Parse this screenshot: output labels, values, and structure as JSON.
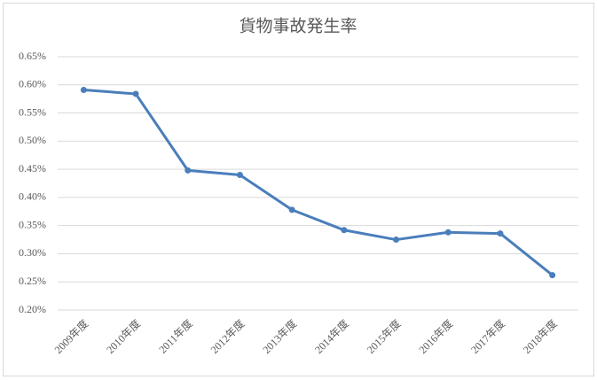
{
  "chart_data": {
    "type": "line",
    "title": "貨物事故発生率",
    "categories": [
      "2009年度",
      "2010年度",
      "2011年度",
      "2012年度",
      "2013年度",
      "2014年度",
      "2015年度",
      "2016年度",
      "2017年度",
      "2018年度"
    ],
    "values": [
      0.591,
      0.584,
      0.448,
      0.44,
      0.378,
      0.342,
      0.325,
      0.338,
      0.336,
      0.262
    ],
    "color": "#4a7ebb",
    "ylim": [
      0.2,
      0.65
    ],
    "yticks": [
      {
        "value": 0.2,
        "label": "0.20%"
      },
      {
        "value": 0.25,
        "label": "0.25%"
      },
      {
        "value": 0.3,
        "label": "0.30%"
      },
      {
        "value": 0.35,
        "label": "0.35%"
      },
      {
        "value": 0.4,
        "label": "0.40%"
      },
      {
        "value": 0.45,
        "label": "0.45%"
      },
      {
        "value": 0.5,
        "label": "0.50%"
      },
      {
        "value": 0.55,
        "label": "0.55%"
      },
      {
        "value": 0.6,
        "label": "0.60%"
      },
      {
        "value": 0.65,
        "label": "0.65%"
      }
    ],
    "grid": true
  }
}
